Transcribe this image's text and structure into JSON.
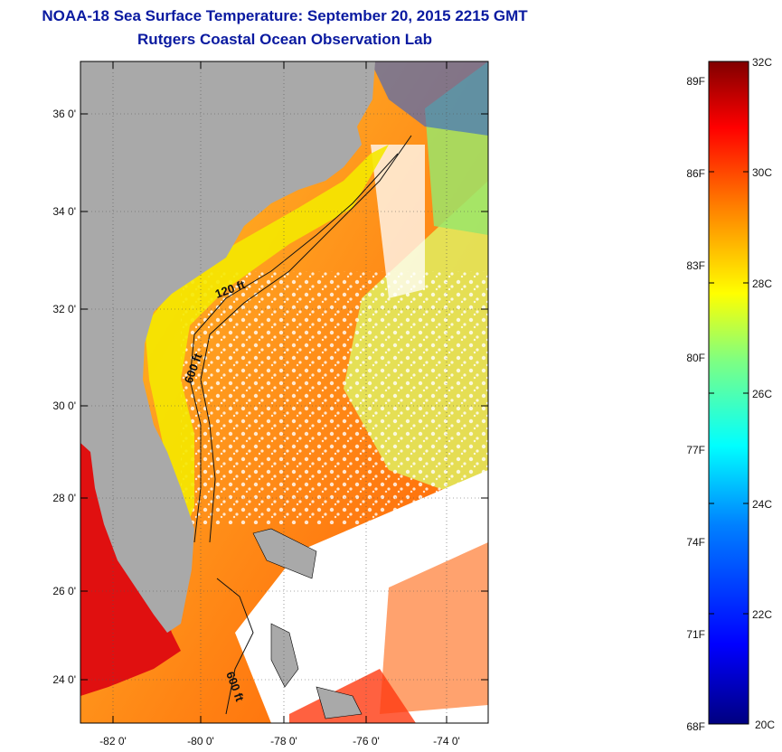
{
  "title": {
    "line1": "NOAA-18 Sea Surface Temperature:  September 20, 2015 2215 GMT",
    "line2": "Rutgers Coastal Ocean Observation Lab"
  },
  "map": {
    "lat_labels": [
      "36 0'",
      "34 0'",
      "32 0'",
      "30 0'",
      "28 0'",
      "26 0'",
      "24 0'"
    ],
    "lon_labels": [
      "-82 0'",
      "-80 0'",
      "-78 0'",
      "-76 0'",
      "-74 0'"
    ],
    "contour_labels": [
      "120 ft",
      "600 ft",
      "600 ft"
    ],
    "colors": {
      "land": "#a9a9a9",
      "nodata": "#ffffff",
      "frame": "#000000"
    }
  },
  "colorbar": {
    "celsius_labels": [
      "32C",
      "30C",
      "28C",
      "26C",
      "24C",
      "22C",
      "20C"
    ],
    "fahrenheit_labels": [
      "89F",
      "86F",
      "83F",
      "80F",
      "77F",
      "74F",
      "71F",
      "68F"
    ],
    "range_c": [
      20,
      32
    ],
    "colormap": [
      "#000080",
      "#0000ff",
      "#0080ff",
      "#00ffff",
      "#80ff80",
      "#ffff00",
      "#ff8000",
      "#ff0000",
      "#800000"
    ]
  }
}
